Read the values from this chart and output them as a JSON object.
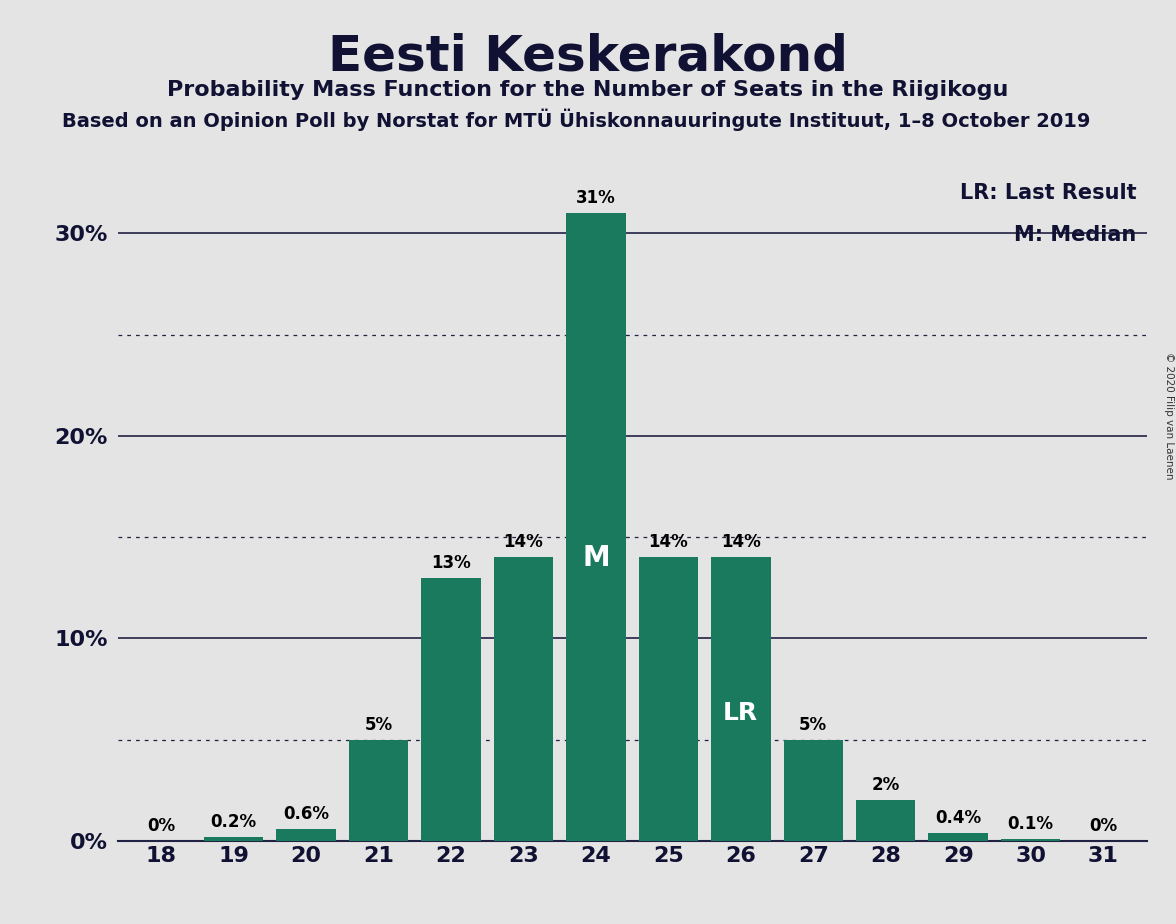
{
  "title": "Eesti Keskerakond",
  "subtitle": "Probability Mass Function for the Number of Seats in the Riigikogu",
  "source_line": "Based on an Opinion Poll by Norstat for MTÜ Ühiskonnauuringute Instituut, 1–8 October 2019",
  "copyright": "© 2020 Filip van Laenen",
  "categories": [
    18,
    19,
    20,
    21,
    22,
    23,
    24,
    25,
    26,
    27,
    28,
    29,
    30,
    31
  ],
  "values": [
    0.0,
    0.2,
    0.6,
    5.0,
    13.0,
    14.0,
    31.0,
    14.0,
    14.0,
    5.0,
    2.0,
    0.4,
    0.1,
    0.0
  ],
  "labels": [
    "0%",
    "0.2%",
    "0.6%",
    "5%",
    "13%",
    "14%",
    "31%",
    "14%",
    "14%",
    "5%",
    "2%",
    "0.4%",
    "0.1%",
    "0%"
  ],
  "bar_color": "#1a7a5e",
  "median_seat": 24,
  "last_result_seat": 26,
  "background_color": "#e4e4e4",
  "title_fontsize": 36,
  "subtitle_fontsize": 16,
  "source_fontsize": 14,
  "ylim_max": 34,
  "legend_lr": "LR: Last Result",
  "legend_m": "M: Median",
  "dotted_lines": [
    5,
    15,
    25
  ],
  "solid_lines": [
    10,
    20,
    30
  ],
  "ytick_positions": [
    0,
    10,
    20,
    30
  ],
  "ytick_labels": [
    "0%",
    "10%",
    "20%",
    "30%"
  ]
}
